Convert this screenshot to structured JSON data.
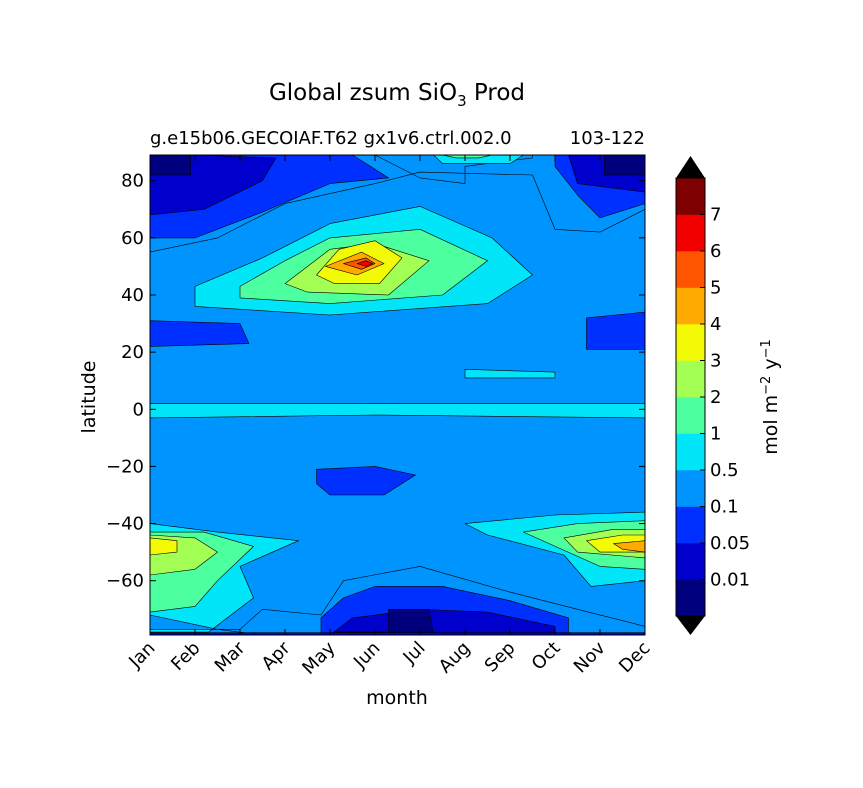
{
  "chart_data": {
    "type": "heatmap",
    "title": "Global zsum SiO",
    "title_subscript": "3",
    "title_suffix": " Prod",
    "subtitle_left": "g.e15b06.GECOIAF.T62 gx1v6.ctrl.002.0",
    "subtitle_right": "103-122",
    "xlabel": "month",
    "ylabel": "latitude",
    "x_tick_labels": [
      "Jan",
      "Feb",
      "Mar",
      "Apr",
      "May",
      "Jun",
      "Jul",
      "Aug",
      "Sep",
      "Oct",
      "Nov",
      "Dec"
    ],
    "y_ticks": [
      80,
      60,
      40,
      20,
      0,
      -20,
      -40,
      -60
    ],
    "y_tick_labels": [
      "80",
      "60",
      "40",
      "20",
      "0",
      "−20",
      "−40",
      "−60"
    ],
    "ylim": [
      -79,
      89
    ],
    "xlim": [
      0,
      11
    ],
    "colorbar": {
      "label_main": "mol m",
      "label_exp1": "−2",
      "label_mid": " y",
      "label_exp2": "−1",
      "levels": [
        0,
        0.01,
        0.05,
        0.1,
        0.5,
        1,
        2,
        3,
        4,
        5,
        6,
        7
      ],
      "tick_labels": [
        "0.01",
        "0.05",
        "0.1",
        "0.5",
        "1",
        "2",
        "3",
        "4",
        "5",
        "6",
        "7"
      ],
      "colors": [
        "#00007f",
        "#0000cd",
        "#0030ff",
        "#0094ff",
        "#00e5f7",
        "#4cff9f",
        "#a3ff53",
        "#f2fa05",
        "#ffaa00",
        "#ff5500",
        "#f20000",
        "#7f0000"
      ],
      "under_color": "#000000",
      "over_color": "#000000"
    },
    "regions": [
      {
        "level": 4,
        "points": [
          [
            0,
            2
          ],
          [
            11,
            2
          ],
          [
            11,
            -3
          ],
          [
            5,
            -2
          ],
          [
            0,
            -3
          ]
        ]
      },
      {
        "level": 4,
        "points": [
          [
            7,
            14
          ],
          [
            9,
            13
          ],
          [
            9,
            11
          ],
          [
            7,
            11
          ]
        ]
      },
      {
        "level": 2,
        "points": [
          [
            0,
            31
          ],
          [
            2,
            30
          ],
          [
            2.2,
            23
          ],
          [
            0,
            22
          ]
        ]
      },
      {
        "level": 2,
        "points": [
          [
            9.7,
            32
          ],
          [
            11,
            34
          ],
          [
            11,
            21
          ],
          [
            9.7,
            21
          ]
        ]
      },
      {
        "level": 2,
        "points": [
          [
            3.7,
            -21
          ],
          [
            5,
            -20
          ],
          [
            5.9,
            -23
          ],
          [
            5.2,
            -30
          ],
          [
            4,
            -30
          ],
          [
            3.7,
            -26
          ]
        ]
      },
      {
        "level": 4,
        "points": [
          [
            1,
            43
          ],
          [
            2.5,
            53
          ],
          [
            4,
            65
          ],
          [
            6,
            71
          ],
          [
            7.6,
            60
          ],
          [
            8.5,
            47
          ],
          [
            7.5,
            37
          ],
          [
            4,
            33
          ],
          [
            1,
            36
          ]
        ]
      },
      {
        "level": 5,
        "points": [
          [
            2,
            43
          ],
          [
            3,
            52
          ],
          [
            4,
            60
          ],
          [
            6,
            63
          ],
          [
            7.5,
            52
          ],
          [
            6.5,
            40
          ],
          [
            4,
            37
          ],
          [
            2,
            39
          ]
        ]
      },
      {
        "level": 6,
        "points": [
          [
            3,
            44
          ],
          [
            4,
            56
          ],
          [
            5,
            58
          ],
          [
            6.2,
            52
          ],
          [
            5.3,
            40
          ],
          [
            3.5,
            41
          ]
        ]
      },
      {
        "level": 7,
        "points": [
          [
            3.7,
            47
          ],
          [
            4.2,
            56
          ],
          [
            5,
            59
          ],
          [
            5.6,
            53
          ],
          [
            5.1,
            44
          ],
          [
            4.1,
            44
          ]
        ]
      },
      {
        "level": 8,
        "points": [
          [
            3.9,
            50
          ],
          [
            4.7,
            55
          ],
          [
            5.2,
            51
          ],
          [
            4.6,
            47
          ]
        ]
      },
      {
        "level": 9,
        "points": [
          [
            4.3,
            51
          ],
          [
            4.8,
            53
          ],
          [
            5,
            51
          ],
          [
            4.7,
            49
          ]
        ]
      },
      {
        "level": 10,
        "points": [
          [
            4.6,
            51
          ],
          [
            4.8,
            52
          ],
          [
            4.95,
            51
          ],
          [
            4.8,
            50
          ]
        ]
      },
      {
        "level": 4,
        "points": [
          [
            0,
            -40
          ],
          [
            1.5,
            -43
          ],
          [
            3.3,
            -46
          ],
          [
            2,
            -55
          ],
          [
            2.3,
            -66
          ],
          [
            1.3,
            -78
          ],
          [
            0,
            -78
          ]
        ]
      },
      {
        "level": 5,
        "points": [
          [
            0,
            -43
          ],
          [
            1.2,
            -43
          ],
          [
            2.3,
            -48
          ],
          [
            1.5,
            -60
          ],
          [
            1,
            -69
          ],
          [
            0,
            -71
          ]
        ]
      },
      {
        "level": 6,
        "points": [
          [
            0,
            -44
          ],
          [
            1,
            -45
          ],
          [
            1.5,
            -50
          ],
          [
            1,
            -56
          ],
          [
            0,
            -58
          ]
        ]
      },
      {
        "level": 7,
        "points": [
          [
            0,
            -45
          ],
          [
            0.6,
            -46
          ],
          [
            0.6,
            -50
          ],
          [
            0,
            -51
          ]
        ]
      },
      {
        "level": 4,
        "points": [
          [
            7,
            -40
          ],
          [
            9,
            -37
          ],
          [
            11,
            -36
          ],
          [
            11,
            -60
          ],
          [
            9.8,
            -62
          ],
          [
            9.2,
            -51
          ],
          [
            7.5,
            -44
          ]
        ]
      },
      {
        "level": 5,
        "points": [
          [
            8.3,
            -43
          ],
          [
            9.5,
            -40
          ],
          [
            11,
            -39
          ],
          [
            11,
            -56
          ],
          [
            10,
            -55
          ]
        ]
      },
      {
        "level": 6,
        "points": [
          [
            9.2,
            -45
          ],
          [
            10.3,
            -42
          ],
          [
            11,
            -42
          ],
          [
            11,
            -52
          ],
          [
            9.5,
            -50
          ]
        ]
      },
      {
        "level": 7,
        "points": [
          [
            9.7,
            -46
          ],
          [
            10.5,
            -44
          ],
          [
            11,
            -44
          ],
          [
            11,
            -50
          ],
          [
            10,
            -50
          ]
        ]
      },
      {
        "level": 8,
        "points": [
          [
            10.3,
            -47
          ],
          [
            11,
            -46
          ],
          [
            11,
            -50
          ],
          [
            10.5,
            -49
          ]
        ]
      },
      {
        "level": 5,
        "points": [
          [
            9.2,
            -78
          ],
          [
            10,
            -76
          ],
          [
            11,
            -76
          ],
          [
            11,
            -79
          ],
          [
            9.2,
            -79
          ]
        ]
      },
      {
        "level": 3,
        "points": [
          [
            0,
            89
          ],
          [
            5,
            89
          ],
          [
            6,
            81
          ],
          [
            7,
            79
          ],
          [
            7,
            85
          ],
          [
            8.5,
            88
          ],
          [
            8.5,
            89
          ],
          [
            11,
            89
          ],
          [
            11,
            70
          ],
          [
            10,
            62
          ],
          [
            9,
            63
          ],
          [
            8.5,
            82
          ],
          [
            6,
            83
          ],
          [
            5,
            79
          ],
          [
            3,
            72
          ],
          [
            1.5,
            60
          ],
          [
            0,
            55
          ]
        ]
      },
      {
        "level": 4,
        "points": [
          [
            6.3,
            89
          ],
          [
            8.3,
            89
          ],
          [
            8,
            86
          ],
          [
            6.5,
            86
          ]
        ]
      },
      {
        "level": 5,
        "points": [
          [
            6.5,
            89
          ],
          [
            7.6,
            89
          ],
          [
            7.3,
            88
          ],
          [
            6.8,
            88
          ]
        ]
      },
      {
        "level": 2,
        "points": [
          [
            0,
            89
          ],
          [
            4.5,
            89
          ],
          [
            5.3,
            81
          ],
          [
            4,
            79
          ],
          [
            2.5,
            69
          ],
          [
            1,
            60
          ],
          [
            0,
            60
          ]
        ]
      },
      {
        "level": 2,
        "points": [
          [
            9,
            89
          ],
          [
            11,
            89
          ],
          [
            11,
            72
          ],
          [
            10,
            67
          ],
          [
            9.5,
            75
          ],
          [
            9,
            85
          ]
        ]
      },
      {
        "level": 1,
        "points": [
          [
            0,
            89
          ],
          [
            1,
            89
          ],
          [
            2.8,
            88
          ],
          [
            2.5,
            80
          ],
          [
            1.2,
            70
          ],
          [
            0,
            68
          ]
        ]
      },
      {
        "level": 1,
        "points": [
          [
            9.3,
            89
          ],
          [
            11,
            89
          ],
          [
            11,
            76
          ],
          [
            9.5,
            79
          ]
        ]
      },
      {
        "level": 0,
        "points": [
          [
            0,
            89
          ],
          [
            0.9,
            89
          ],
          [
            0.9,
            82
          ],
          [
            0,
            82
          ]
        ]
      },
      {
        "level": 0,
        "points": [
          [
            10.1,
            89
          ],
          [
            11,
            89
          ],
          [
            11,
            82
          ],
          [
            10.1,
            82
          ]
        ]
      },
      {
        "level": 3,
        "points": [
          [
            0,
            -72
          ],
          [
            1.5,
            -77
          ],
          [
            2.5,
            -79
          ],
          [
            11,
            -79
          ],
          [
            11,
            -76
          ],
          [
            9.5,
            -70
          ],
          [
            8,
            -64
          ],
          [
            6,
            -55
          ],
          [
            4.3,
            -60
          ],
          [
            3.8,
            -72
          ],
          [
            2.5,
            -70
          ],
          [
            2,
            -77
          ],
          [
            0,
            -77
          ]
        ]
      },
      {
        "level": 2,
        "points": [
          [
            3.8,
            -79
          ],
          [
            3.8,
            -73
          ],
          [
            4.3,
            -66
          ],
          [
            5,
            -62
          ],
          [
            6.5,
            -62
          ],
          [
            8,
            -67
          ],
          [
            9.3,
            -73
          ],
          [
            9.3,
            -79
          ]
        ]
      },
      {
        "level": 1,
        "points": [
          [
            4,
            -79
          ],
          [
            4.5,
            -73
          ],
          [
            6,
            -70
          ],
          [
            7.5,
            -71
          ],
          [
            9,
            -76
          ],
          [
            9,
            -79
          ]
        ]
      },
      {
        "level": 0,
        "points": [
          [
            4.1,
            -79
          ],
          [
            4.1,
            -78
          ],
          [
            5.3,
            -78
          ],
          [
            5.3,
            -70
          ],
          [
            6.2,
            -70
          ],
          [
            6.3,
            -79
          ]
        ]
      },
      {
        "level": 1,
        "points": [
          [
            0,
            -79
          ],
          [
            11,
            -79
          ],
          [
            11,
            -78.2
          ],
          [
            0,
            -78.2
          ]
        ]
      }
    ]
  }
}
